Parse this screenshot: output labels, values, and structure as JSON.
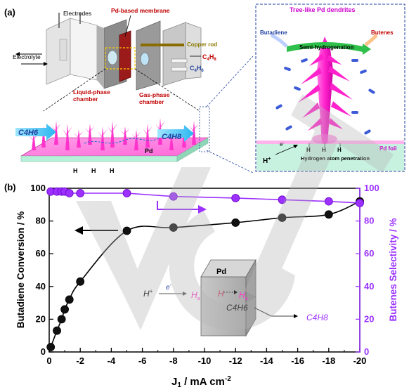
{
  "panel_a": {
    "label": "(a)",
    "electrodes": "Electrodes",
    "membrane": "Pd-based membrane",
    "copper_rod": "Copper rod",
    "electrolyte": "Electrolyte",
    "liquid_chamber_1": "Liquid-phase",
    "liquid_chamber_2": "chamber",
    "gas_chamber_1": "Gas-phase",
    "gas_chamber_2": "chamber",
    "c4h8_out_main": "C",
    "c4h8_out_sub1": "4",
    "c4h8_out_mid": "H",
    "c4h8_out_sub2": "8",
    "c4h6_in_main": "C",
    "c4h6_in_sub1": "4",
    "c4h6_in_mid": "H",
    "c4h6_in_sub2": "6",
    "slab_c4h6": "C4H6",
    "slab_c4h8": "C4H8",
    "slab_pd": "Pd",
    "slab_h": [
      "H",
      "H",
      "H"
    ],
    "inset_title": "Tree-like Pd dendrites",
    "butadiene": "Butadiene",
    "butenes": "Butenes",
    "semi_hydro": "Semi-hydrogenation",
    "pd_foil": "Pd foil",
    "h_plus": "H",
    "e_minus": "e",
    "h_atoms": [
      "H",
      "H",
      "H"
    ],
    "h_penetration": "Hydrogen atom penetration"
  },
  "panel_b": {
    "label": "(b)",
    "xlabel_main": "J",
    "xlabel_sub": "1",
    "xlabel_rest": " / mA cm",
    "xlabel_sup": "-2",
    "ylabel_left": "Butadiene Conversion / %",
    "ylabel_right": "Butenes Selectivity / %",
    "inset_pd": "Pd",
    "inset_hplus": "H",
    "inset_e": "e",
    "inset_ha1": "H",
    "inset_ha1_sub": "a",
    "inset_h": "H",
    "inset_ha2": "H",
    "inset_ha2_sub": "a",
    "inset_c4h6": "C4H6",
    "inset_c4h8": "C4H8"
  },
  "chart_data": {
    "type": "scatter",
    "x_ticks": [
      "0",
      "-2",
      "-4",
      "-6",
      "-8",
      "-10",
      "-12",
      "-14",
      "-16",
      "-18",
      "-20"
    ],
    "y_left_ticks": [
      "0",
      "20",
      "40",
      "60",
      "80",
      "100"
    ],
    "y_right_ticks": [
      "0",
      "20",
      "40",
      "60",
      "80",
      "100"
    ],
    "xlim": [
      0,
      -20
    ],
    "ylim_left": [
      0,
      100
    ],
    "ylim_right": [
      0,
      100
    ],
    "series": [
      {
        "axis": "left",
        "color": "#111111",
        "x": [
          -0.1,
          -0.5,
          -0.8,
          -1.0,
          -1.3,
          -2.0,
          -5.0,
          -8.0,
          -12.0,
          -15.0,
          -18.0,
          -20.0
        ],
        "y": [
          3,
          13,
          20,
          26,
          32,
          43,
          74,
          76,
          79,
          82,
          84,
          92
        ]
      },
      {
        "axis": "right",
        "color": "#9b30ff",
        "x": [
          -0.1,
          -0.5,
          -0.8,
          -1.0,
          -1.3,
          -2.0,
          -5.0,
          -8.0,
          -12.0,
          -15.0,
          -18.0,
          -20.0
        ],
        "y": [
          98,
          98,
          98,
          98,
          97,
          97,
          97,
          95,
          94,
          93,
          92,
          91
        ]
      }
    ]
  },
  "colors": {
    "accent_purple": "#9b30ff",
    "pink": "#ff33cc",
    "dark_red": "#c00000",
    "blue_label": "#1f3f9f",
    "olive": "#8a7a00"
  }
}
